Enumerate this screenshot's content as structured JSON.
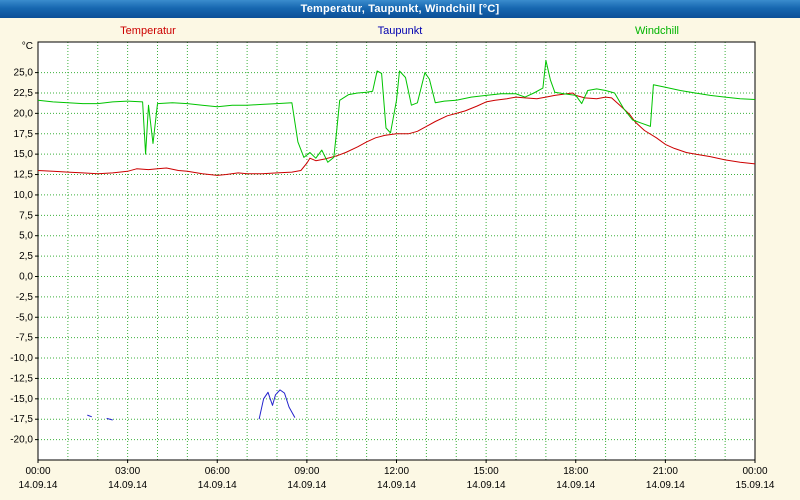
{
  "window": {
    "title": "Temperatur, Taupunkt, Windchill [°C]"
  },
  "legend": [
    {
      "label": "Temperatur",
      "color": "#cc0000"
    },
    {
      "label": "Taupunkt",
      "color": "#0000b0"
    },
    {
      "label": "Windchill",
      "color": "#00b400"
    }
  ],
  "colors": {
    "background": "#fcf8e4",
    "plot_background": "#ffffff",
    "grid": "#3db03d",
    "axis": "#000000",
    "title_bar": "#1565ad"
  },
  "chart_data": {
    "type": "line",
    "title": "Temperatur, Taupunkt, Windchill [°C]",
    "xlabel": "",
    "ylabel": "°C",
    "xlim": [
      0,
      24
    ],
    "ylim": [
      -22.5,
      28.75
    ],
    "grid": {
      "visible": true,
      "style": "dotted",
      "color": "#3db03d",
      "x_interval_hours": 1,
      "y_interval_deg": 2.5
    },
    "legend_position": "top",
    "y_ticks": [
      {
        "value": 25,
        "label": "25,0"
      },
      {
        "value": 22.5,
        "label": "22,5"
      },
      {
        "value": 20,
        "label": "20,0"
      },
      {
        "value": 17.5,
        "label": "17,5"
      },
      {
        "value": 15,
        "label": "15,0"
      },
      {
        "value": 12.5,
        "label": "12,5"
      },
      {
        "value": 10,
        "label": "10,0"
      },
      {
        "value": 7.5,
        "label": "7,5"
      },
      {
        "value": 5,
        "label": "5,0"
      },
      {
        "value": 2.5,
        "label": "2,5"
      },
      {
        "value": 0,
        "label": "0,0"
      },
      {
        "value": -2.5,
        "label": "-2,5"
      },
      {
        "value": -5,
        "label": "-5,0"
      },
      {
        "value": -7.5,
        "label": "-7,5"
      },
      {
        "value": -10,
        "label": "-10,0"
      },
      {
        "value": -12.5,
        "label": "-12,5"
      },
      {
        "value": -15,
        "label": "-15,0"
      },
      {
        "value": -17.5,
        "label": "-17,5"
      },
      {
        "value": -20,
        "label": "-20,0"
      }
    ],
    "x_ticks": [
      {
        "hour": 0,
        "time": "00:00",
        "date": "14.09.14"
      },
      {
        "hour": 3,
        "time": "03:00",
        "date": "14.09.14"
      },
      {
        "hour": 6,
        "time": "06:00",
        "date": "14.09.14"
      },
      {
        "hour": 9,
        "time": "09:00",
        "date": "14.09.14"
      },
      {
        "hour": 12,
        "time": "12:00",
        "date": "14.09.14"
      },
      {
        "hour": 15,
        "time": "15:00",
        "date": "14.09.14"
      },
      {
        "hour": 18,
        "time": "18:00",
        "date": "14.09.14"
      },
      {
        "hour": 21,
        "time": "21:00",
        "date": "14.09.14"
      },
      {
        "hour": 24,
        "time": "00:00",
        "date": "15.09.14"
      }
    ],
    "series": [
      {
        "name": "Temperatur",
        "color": "#cc0000",
        "unit": "°C",
        "points": [
          [
            0,
            13.0
          ],
          [
            0.5,
            12.9
          ],
          [
            1,
            12.8
          ],
          [
            1.5,
            12.7
          ],
          [
            2,
            12.6
          ],
          [
            2.5,
            12.7
          ],
          [
            3,
            12.9
          ],
          [
            3.3,
            13.2
          ],
          [
            3.7,
            13.1
          ],
          [
            4,
            13.2
          ],
          [
            4.3,
            13.3
          ],
          [
            4.7,
            13.0
          ],
          [
            5,
            12.9
          ],
          [
            5.5,
            12.6
          ],
          [
            6,
            12.4
          ],
          [
            6.3,
            12.5
          ],
          [
            6.7,
            12.7
          ],
          [
            7,
            12.6
          ],
          [
            7.5,
            12.6
          ],
          [
            8,
            12.7
          ],
          [
            8.5,
            12.8
          ],
          [
            8.8,
            13.0
          ],
          [
            9,
            13.9
          ],
          [
            9.1,
            14.5
          ],
          [
            9.3,
            14.2
          ],
          [
            9.6,
            14.4
          ],
          [
            10,
            14.8
          ],
          [
            10.3,
            15.2
          ],
          [
            10.7,
            15.9
          ],
          [
            11,
            16.5
          ],
          [
            11.3,
            17.0
          ],
          [
            11.6,
            17.3
          ],
          [
            12,
            17.5
          ],
          [
            12.4,
            17.5
          ],
          [
            12.7,
            17.8
          ],
          [
            13,
            18.4
          ],
          [
            13.3,
            19.0
          ],
          [
            13.7,
            19.7
          ],
          [
            14,
            20.0
          ],
          [
            14.3,
            20.3
          ],
          [
            14.7,
            20.9
          ],
          [
            15,
            21.4
          ],
          [
            15.3,
            21.6
          ],
          [
            15.7,
            21.8
          ],
          [
            16,
            22.0
          ],
          [
            16.3,
            21.9
          ],
          [
            16.7,
            21.8
          ],
          [
            17,
            22.0
          ],
          [
            17.3,
            22.2
          ],
          [
            17.7,
            22.4
          ],
          [
            17.9,
            22.5
          ],
          [
            18,
            22.2
          ],
          [
            18.3,
            21.9
          ],
          [
            18.7,
            21.8
          ],
          [
            19,
            22.0
          ],
          [
            19.2,
            21.9
          ],
          [
            19.5,
            20.9
          ],
          [
            19.8,
            19.9
          ],
          [
            20,
            18.9
          ],
          [
            20.3,
            17.9
          ],
          [
            20.7,
            17.0
          ],
          [
            21,
            16.2
          ],
          [
            21.3,
            15.7
          ],
          [
            21.7,
            15.2
          ],
          [
            22,
            15.0
          ],
          [
            22.5,
            14.7
          ],
          [
            23,
            14.3
          ],
          [
            23.5,
            14.0
          ],
          [
            24,
            13.8
          ]
        ]
      },
      {
        "name": "Windchill",
        "color": "#00c400",
        "unit": "°C",
        "points": [
          [
            0,
            21.6
          ],
          [
            0.5,
            21.4
          ],
          [
            1,
            21.3
          ],
          [
            1.5,
            21.2
          ],
          [
            2,
            21.2
          ],
          [
            2.5,
            21.4
          ],
          [
            3,
            21.5
          ],
          [
            3.5,
            21.4
          ],
          [
            3.6,
            15.0
          ],
          [
            3.7,
            21.0
          ],
          [
            3.85,
            16.3
          ],
          [
            4,
            21.2
          ],
          [
            4.5,
            21.3
          ],
          [
            5,
            21.2
          ],
          [
            5.5,
            21.0
          ],
          [
            6,
            20.8
          ],
          [
            6.5,
            21.0
          ],
          [
            7,
            21.0
          ],
          [
            7.5,
            21.1
          ],
          [
            8,
            21.2
          ],
          [
            8.5,
            21.3
          ],
          [
            8.7,
            16.5
          ],
          [
            8.9,
            14.6
          ],
          [
            9.1,
            15.2
          ],
          [
            9.3,
            14.5
          ],
          [
            9.5,
            15.5
          ],
          [
            9.7,
            14.0
          ],
          [
            9.9,
            14.6
          ],
          [
            10,
            18.0
          ],
          [
            10.1,
            21.6
          ],
          [
            10.4,
            22.3
          ],
          [
            10.7,
            22.5
          ],
          [
            11,
            22.6
          ],
          [
            11.2,
            22.7
          ],
          [
            11.35,
            25.2
          ],
          [
            11.5,
            24.9
          ],
          [
            11.65,
            18.2
          ],
          [
            11.8,
            17.6
          ],
          [
            12,
            21.6
          ],
          [
            12.1,
            25.2
          ],
          [
            12.3,
            24.4
          ],
          [
            12.5,
            21.0
          ],
          [
            12.7,
            21.3
          ],
          [
            12.95,
            25.0
          ],
          [
            13.1,
            24.2
          ],
          [
            13.3,
            21.3
          ],
          [
            13.6,
            21.5
          ],
          [
            14,
            21.6
          ],
          [
            14.5,
            22.0
          ],
          [
            15,
            22.2
          ],
          [
            15.5,
            22.4
          ],
          [
            16,
            22.4
          ],
          [
            16.3,
            22.0
          ],
          [
            16.6,
            22.5
          ],
          [
            16.9,
            23.1
          ],
          [
            17,
            26.5
          ],
          [
            17.15,
            24.1
          ],
          [
            17.3,
            22.6
          ],
          [
            17.6,
            22.4
          ],
          [
            18,
            22.2
          ],
          [
            18.2,
            21.2
          ],
          [
            18.4,
            22.8
          ],
          [
            18.7,
            23.0
          ],
          [
            19,
            22.8
          ],
          [
            19.3,
            22.5
          ],
          [
            19.6,
            20.6
          ],
          [
            19.9,
            19.2
          ],
          [
            20.2,
            18.8
          ],
          [
            20.5,
            18.4
          ],
          [
            20.6,
            23.5
          ],
          [
            21,
            23.2
          ],
          [
            21.5,
            22.8
          ],
          [
            22,
            22.5
          ],
          [
            22.5,
            22.2
          ],
          [
            23,
            22.0
          ],
          [
            23.5,
            21.8
          ],
          [
            24,
            21.7
          ]
        ]
      },
      {
        "name": "Taupunkt",
        "color": "#2222cc",
        "unit": "°C",
        "segments": [
          [
            [
              1.65,
              -17.0
            ],
            [
              1.8,
              -17.2
            ]
          ],
          [
            [
              2.3,
              -17.4
            ],
            [
              2.5,
              -17.6
            ]
          ],
          [
            [
              7.4,
              -17.5
            ],
            [
              7.55,
              -15.0
            ],
            [
              7.7,
              -14.2
            ],
            [
              7.85,
              -15.8
            ],
            [
              7.95,
              -14.5
            ],
            [
              8.1,
              -13.9
            ],
            [
              8.25,
              -14.3
            ],
            [
              8.4,
              -16.0
            ],
            [
              8.6,
              -17.3
            ]
          ]
        ]
      }
    ]
  }
}
